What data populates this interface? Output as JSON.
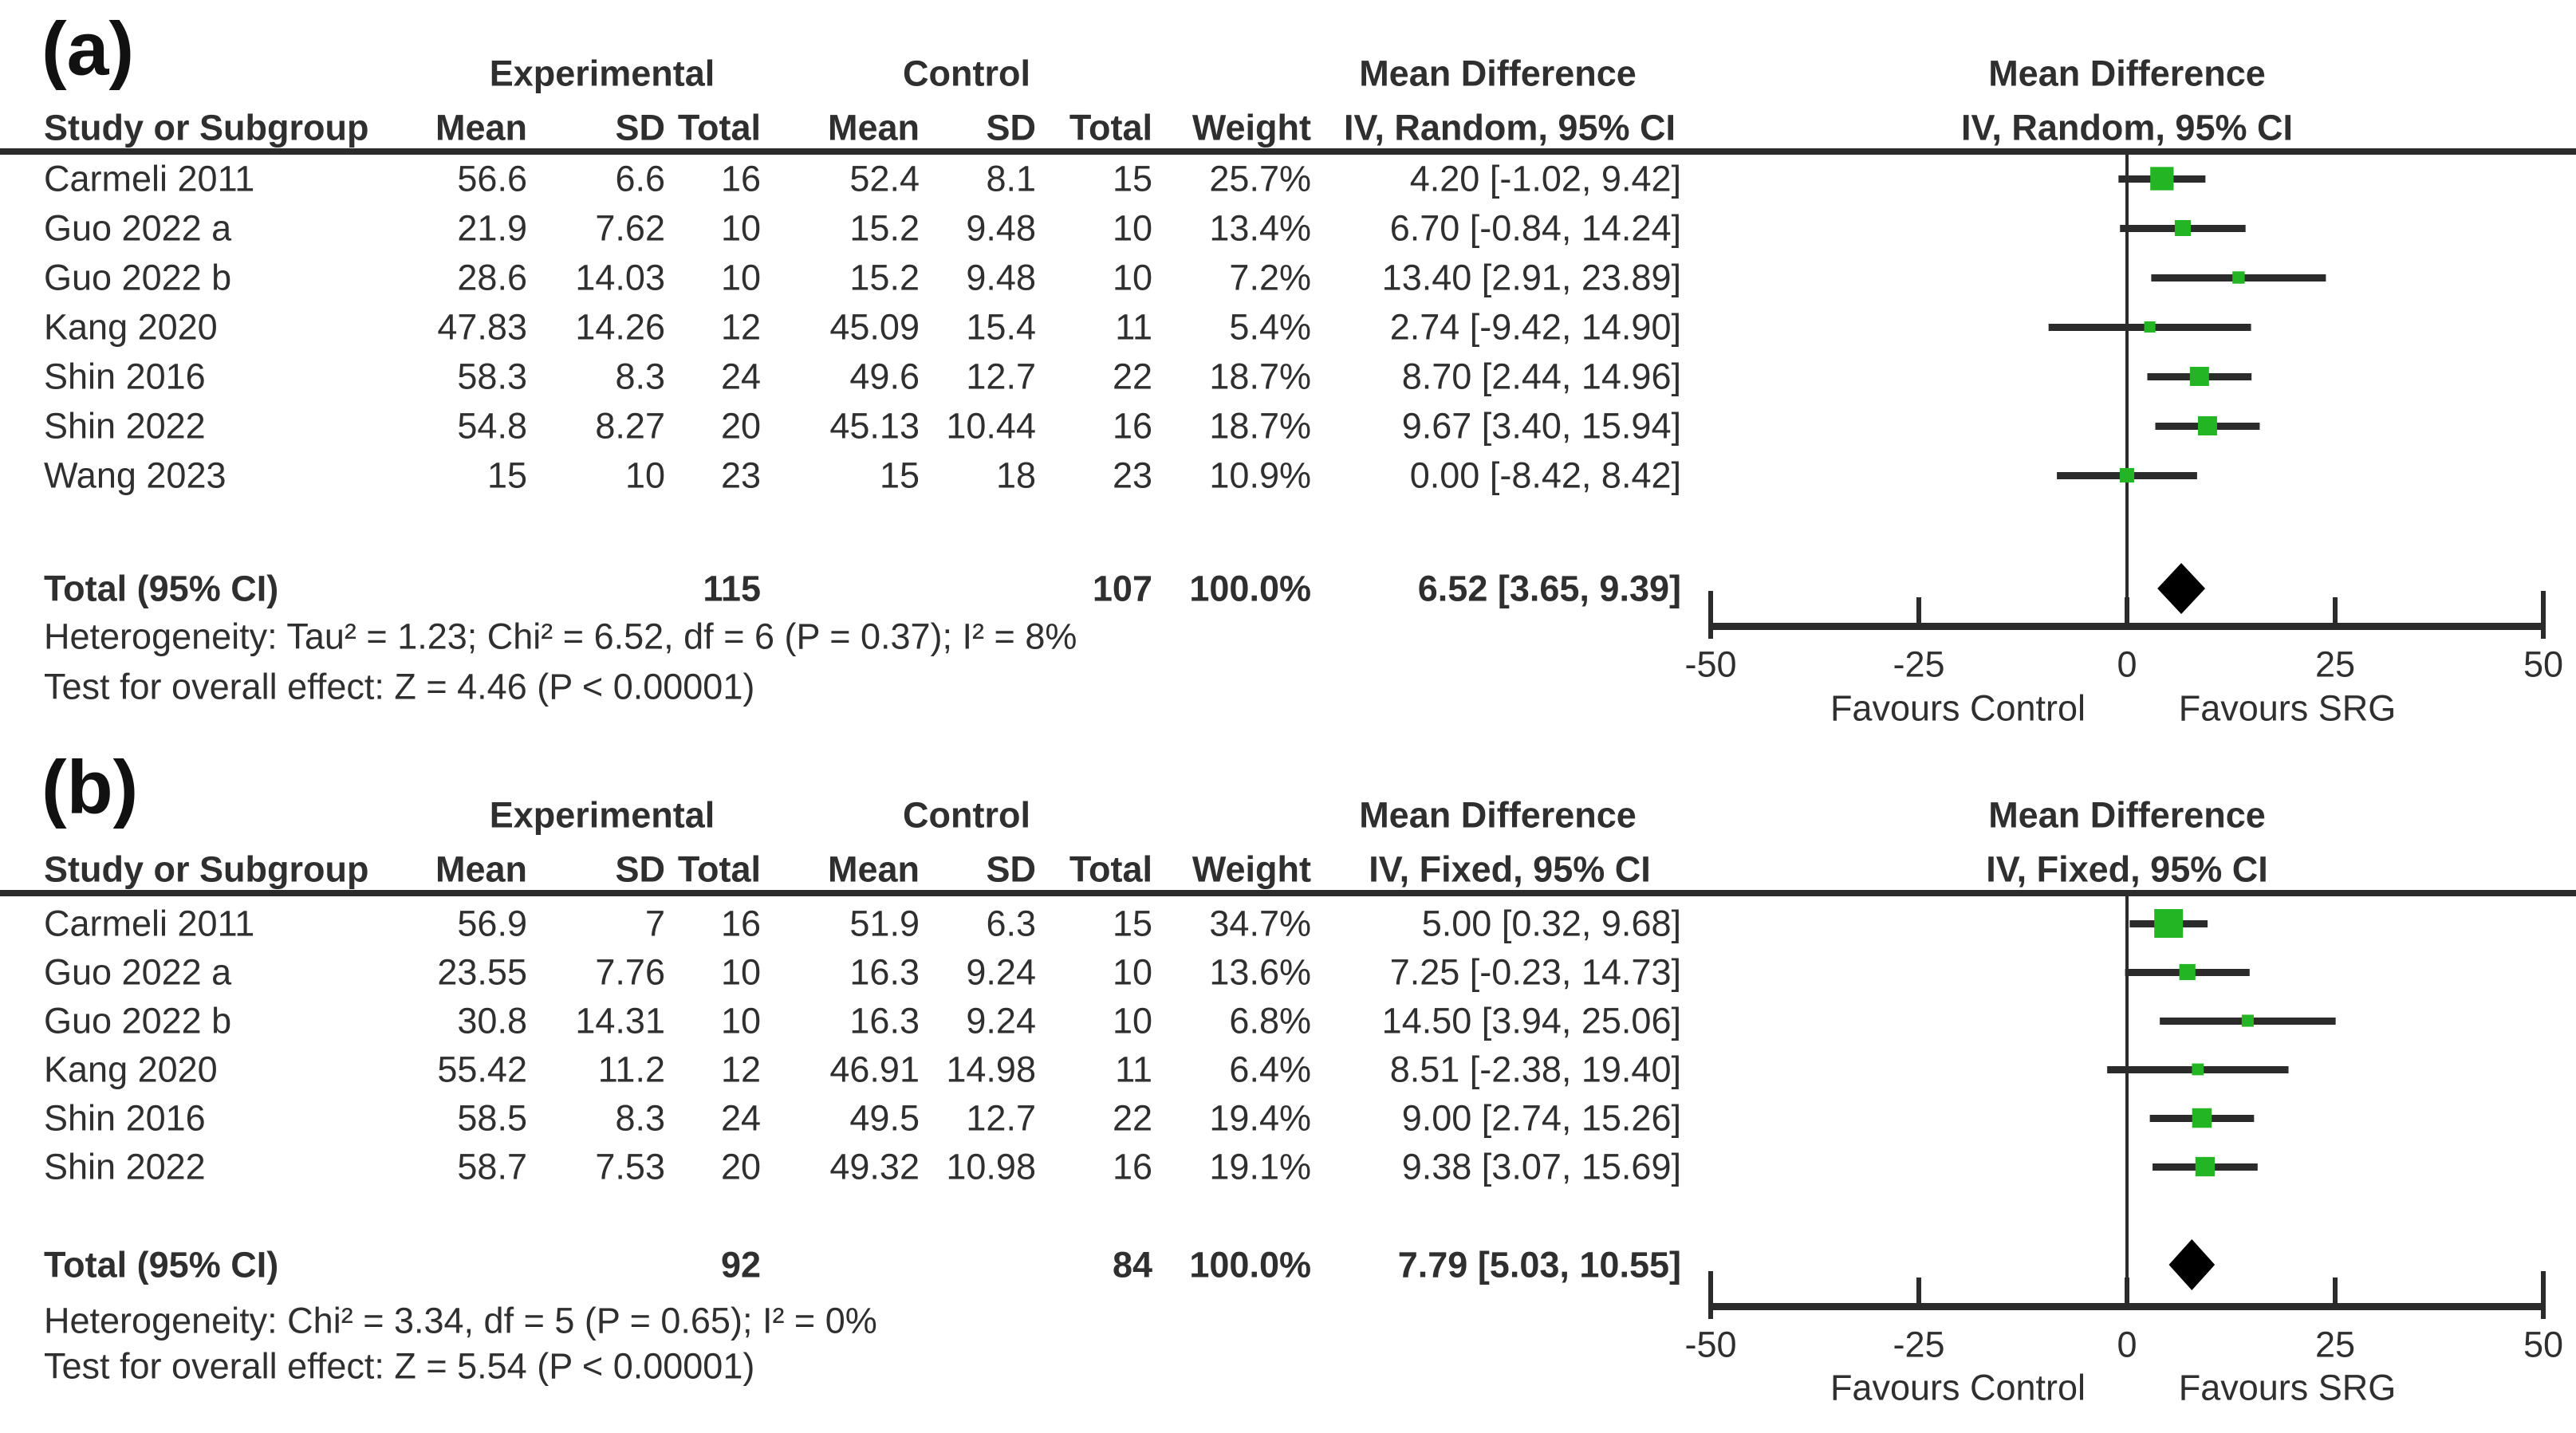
{
  "colors": {
    "background": "#ffffff",
    "text": "#2f2f2f",
    "line": "#2b2b2b",
    "marker": "#23b523",
    "diamond": "#000000"
  },
  "columns": {
    "study": "Study or Subgroup",
    "mean": "Mean",
    "sd": "SD",
    "total": "Total",
    "weight": "Weight"
  },
  "axis": {
    "min": -50,
    "max": 50,
    "ticks": [
      -50,
      -25,
      0,
      25,
      50
    ],
    "favours_left": "Favours Control",
    "favours_right": "Favours SRG"
  },
  "chart_data": [
    {
      "type": "forest_plot",
      "panel_label": "(a)",
      "group_experimental": "Experimental",
      "group_control": "Control",
      "effect_title": "Mean Difference",
      "effect_model": "IV, Random, 95% CI",
      "studies": [
        {
          "study": "Carmeli 2011",
          "exp_mean": "56.6",
          "exp_sd": "6.6",
          "exp_total": "16",
          "ctl_mean": "52.4",
          "ctl_sd": "8.1",
          "ctl_total": "15",
          "weight": "25.7%",
          "weight_value": 25.7,
          "md": 4.2,
          "ci_low": -1.02,
          "ci_high": 9.42,
          "ci_text": "4.20 [-1.02, 9.42]"
        },
        {
          "study": "Guo 2022 a",
          "exp_mean": "21.9",
          "exp_sd": "7.62",
          "exp_total": "10",
          "ctl_mean": "15.2",
          "ctl_sd": "9.48",
          "ctl_total": "10",
          "weight": "13.4%",
          "weight_value": 13.4,
          "md": 6.7,
          "ci_low": -0.84,
          "ci_high": 14.24,
          "ci_text": "6.70 [-0.84, 14.24]"
        },
        {
          "study": "Guo 2022 b",
          "exp_mean": "28.6",
          "exp_sd": "14.03",
          "exp_total": "10",
          "ctl_mean": "15.2",
          "ctl_sd": "9.48",
          "ctl_total": "10",
          "weight": "7.2%",
          "weight_value": 7.2,
          "md": 13.4,
          "ci_low": 2.91,
          "ci_high": 23.89,
          "ci_text": "13.40 [2.91, 23.89]"
        },
        {
          "study": "Kang 2020",
          "exp_mean": "47.83",
          "exp_sd": "14.26",
          "exp_total": "12",
          "ctl_mean": "45.09",
          "ctl_sd": "15.4",
          "ctl_total": "11",
          "weight": "5.4%",
          "weight_value": 5.4,
          "md": 2.74,
          "ci_low": -9.42,
          "ci_high": 14.9,
          "ci_text": "2.74 [-9.42, 14.90]"
        },
        {
          "study": "Shin 2016",
          "exp_mean": "58.3",
          "exp_sd": "8.3",
          "exp_total": "24",
          "ctl_mean": "49.6",
          "ctl_sd": "12.7",
          "ctl_total": "22",
          "weight": "18.7%",
          "weight_value": 18.7,
          "md": 8.7,
          "ci_low": 2.44,
          "ci_high": 14.96,
          "ci_text": "8.70 [2.44, 14.96]"
        },
        {
          "study": "Shin 2022",
          "exp_mean": "54.8",
          "exp_sd": "8.27",
          "exp_total": "20",
          "ctl_mean": "45.13",
          "ctl_sd": "10.44",
          "ctl_total": "16",
          "weight": "18.7%",
          "weight_value": 18.7,
          "md": 9.67,
          "ci_low": 3.4,
          "ci_high": 15.94,
          "ci_text": "9.67 [3.40, 15.94]"
        },
        {
          "study": "Wang 2023",
          "exp_mean": "15",
          "exp_sd": "10",
          "exp_total": "23",
          "ctl_mean": "15",
          "ctl_sd": "18",
          "ctl_total": "23",
          "weight": "10.9%",
          "weight_value": 10.9,
          "md": 0.0,
          "ci_low": -8.42,
          "ci_high": 8.42,
          "ci_text": "0.00 [-8.42, 8.42]"
        }
      ],
      "total": {
        "label": "Total (95% CI)",
        "exp_total": "115",
        "ctl_total": "107",
        "weight": "100.0%",
        "md": 6.52,
        "ci_low": 3.65,
        "ci_high": 9.39,
        "ci_text": "6.52 [3.65, 9.39]"
      },
      "heterogeneity": "Heterogeneity: Tau² = 1.23; Chi² = 6.52, df = 6 (P = 0.37); I² = 8%",
      "overall_effect": "Test for overall effect: Z = 4.46 (P < 0.00001)"
    },
    {
      "type": "forest_plot",
      "panel_label": "(b)",
      "group_experimental": "Experimental",
      "group_control": "Control",
      "effect_title": "Mean Difference",
      "effect_model": "IV, Fixed, 95% CI",
      "studies": [
        {
          "study": "Carmeli 2011",
          "exp_mean": "56.9",
          "exp_sd": "7",
          "exp_total": "16",
          "ctl_mean": "51.9",
          "ctl_sd": "6.3",
          "ctl_total": "15",
          "weight": "34.7%",
          "weight_value": 34.7,
          "md": 5.0,
          "ci_low": 0.32,
          "ci_high": 9.68,
          "ci_text": "5.00 [0.32, 9.68]"
        },
        {
          "study": "Guo 2022 a",
          "exp_mean": "23.55",
          "exp_sd": "7.76",
          "exp_total": "10",
          "ctl_mean": "16.3",
          "ctl_sd": "9.24",
          "ctl_total": "10",
          "weight": "13.6%",
          "weight_value": 13.6,
          "md": 7.25,
          "ci_low": -0.23,
          "ci_high": 14.73,
          "ci_text": "7.25 [-0.23, 14.73]"
        },
        {
          "study": "Guo 2022 b",
          "exp_mean": "30.8",
          "exp_sd": "14.31",
          "exp_total": "10",
          "ctl_mean": "16.3",
          "ctl_sd": "9.24",
          "ctl_total": "10",
          "weight": "6.8%",
          "weight_value": 6.8,
          "md": 14.5,
          "ci_low": 3.94,
          "ci_high": 25.06,
          "ci_text": "14.50 [3.94, 25.06]"
        },
        {
          "study": "Kang 2020",
          "exp_mean": "55.42",
          "exp_sd": "11.2",
          "exp_total": "12",
          "ctl_mean": "46.91",
          "ctl_sd": "14.98",
          "ctl_total": "11",
          "weight": "6.4%",
          "weight_value": 6.4,
          "md": 8.51,
          "ci_low": -2.38,
          "ci_high": 19.4,
          "ci_text": "8.51 [-2.38, 19.40]"
        },
        {
          "study": "Shin 2016",
          "exp_mean": "58.5",
          "exp_sd": "8.3",
          "exp_total": "24",
          "ctl_mean": "49.5",
          "ctl_sd": "12.7",
          "ctl_total": "22",
          "weight": "19.4%",
          "weight_value": 19.4,
          "md": 9.0,
          "ci_low": 2.74,
          "ci_high": 15.26,
          "ci_text": "9.00 [2.74, 15.26]"
        },
        {
          "study": "Shin 2022",
          "exp_mean": "58.7",
          "exp_sd": "7.53",
          "exp_total": "20",
          "ctl_mean": "49.32",
          "ctl_sd": "10.98",
          "ctl_total": "16",
          "weight": "19.1%",
          "weight_value": 19.1,
          "md": 9.38,
          "ci_low": 3.07,
          "ci_high": 15.69,
          "ci_text": "9.38 [3.07, 15.69]"
        }
      ],
      "total": {
        "label": "Total (95% CI)",
        "exp_total": "92",
        "ctl_total": "84",
        "weight": "100.0%",
        "md": 7.79,
        "ci_low": 5.03,
        "ci_high": 10.55,
        "ci_text": "7.79 [5.03, 10.55]"
      },
      "heterogeneity": "Heterogeneity: Chi² = 3.34, df = 5 (P = 0.65); I² = 0%",
      "overall_effect": "Test for overall effect: Z = 5.54 (P < 0.00001)"
    }
  ]
}
